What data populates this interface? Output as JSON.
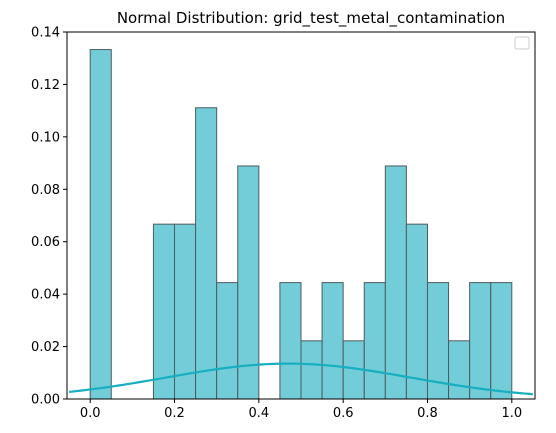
{
  "chart_data": {
    "type": "bar",
    "title": "Normal Distribution: grid_test_metal_contamination",
    "xlabel": "",
    "ylabel": "",
    "xlim": [
      -0.055,
      1.055
    ],
    "ylim": [
      0,
      0.14
    ],
    "x_ticks": [
      0.0,
      0.2,
      0.4,
      0.6,
      0.8,
      1.0
    ],
    "x_tick_labels": [
      "0.0",
      "0.2",
      "0.4",
      "0.6",
      "0.8",
      "1.0"
    ],
    "y_ticks": [
      0.0,
      0.02,
      0.04,
      0.06,
      0.08,
      0.1,
      0.12,
      0.14
    ],
    "y_tick_labels": [
      "0.00",
      "0.02",
      "0.04",
      "0.06",
      "0.08",
      "0.10",
      "0.12",
      "0.14"
    ],
    "grid": false,
    "legend": {
      "placement": "top-right",
      "entries": []
    },
    "histogram": {
      "bin_edges": [
        0.0,
        0.05,
        0.1,
        0.15,
        0.2,
        0.25,
        0.3,
        0.35,
        0.4,
        0.45,
        0.5,
        0.55,
        0.6,
        0.65,
        0.7,
        0.75,
        0.8,
        0.85,
        0.9,
        0.95,
        1.0
      ],
      "values": [
        0.1333,
        0.0,
        0.0,
        0.0667,
        0.0667,
        0.1111,
        0.0444,
        0.0889,
        0.0,
        0.0444,
        0.0222,
        0.0444,
        0.0222,
        0.0444,
        0.0889,
        0.0667,
        0.0444,
        0.0222,
        0.0444,
        0.0444
      ],
      "color": "#72cdd9",
      "edge_color": "#4d5b5e"
    },
    "curve": {
      "type": "normal-pdf",
      "x_range": [
        -0.05,
        1.05
      ],
      "peak_x": 0.47,
      "peak_y": 0.0135,
      "sigma_x": 0.29,
      "color": "#17aec0"
    }
  }
}
